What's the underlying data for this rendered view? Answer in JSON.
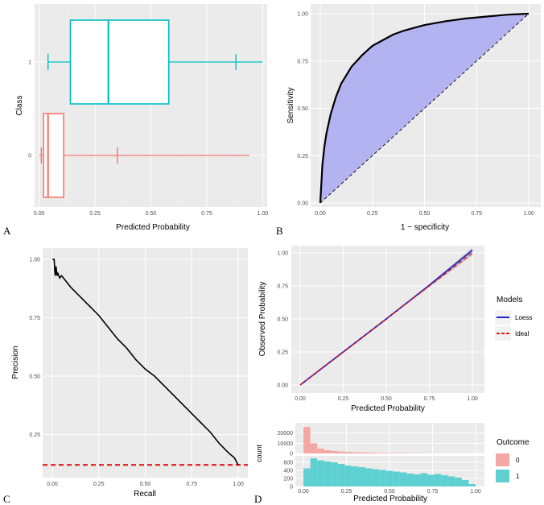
{
  "figure": {
    "panel_letters": [
      "A",
      "B",
      "C",
      "D"
    ],
    "colors": {
      "class0": "#f8766d",
      "class1": "#00bfc4",
      "roc_fill": "#b3b3f2",
      "loess": "#2222cc",
      "ideal": "#e31a1c",
      "panel_bg": "#ebebeb"
    }
  },
  "chart_data": [
    {
      "id": "A",
      "type": "box",
      "title": "",
      "xlabel": "Predicted Probability",
      "ylabel": "Class",
      "xlim": [
        -0.02,
        1.02
      ],
      "xticks": [
        "0.00",
        "0.25",
        "0.50",
        "0.75",
        "1.00"
      ],
      "categories": [
        "0",
        "1"
      ],
      "boxes": [
        {
          "class": "0",
          "whisker_low": 0.0,
          "q1": 0.02,
          "median": 0.04,
          "q3": 0.11,
          "whisker_high": 0.94,
          "marks": [
            0.01,
            0.35
          ]
        },
        {
          "class": "1",
          "whisker_low": 0.04,
          "q1": 0.14,
          "median": 0.31,
          "q3": 0.58,
          "whisker_high": 1.0,
          "marks": [
            0.04,
            0.88
          ]
        }
      ]
    },
    {
      "id": "B",
      "type": "line",
      "title": "",
      "xlabel": "1 − specificity",
      "ylabel": "Sensitivity",
      "xlim": [
        0,
        1
      ],
      "ylim": [
        0,
        1
      ],
      "xticks": [
        "0.00",
        "0.25",
        "0.50",
        "0.75",
        "1.00"
      ],
      "yticks": [
        "0.00",
        "0.25",
        "0.50",
        "0.75",
        "1.00"
      ],
      "x": [
        0,
        0.005,
        0.01,
        0.02,
        0.03,
        0.05,
        0.075,
        0.1,
        0.15,
        0.2,
        0.25,
        0.3,
        0.35,
        0.4,
        0.5,
        0.6,
        0.7,
        0.8,
        0.9,
        1.0
      ],
      "y": [
        0,
        0.1,
        0.2,
        0.3,
        0.37,
        0.47,
        0.56,
        0.63,
        0.72,
        0.78,
        0.83,
        0.86,
        0.89,
        0.91,
        0.94,
        0.96,
        0.975,
        0.985,
        0.995,
        1.0
      ],
      "reference_line": "diagonal"
    },
    {
      "id": "C",
      "type": "line",
      "title": "",
      "xlabel": "Recall",
      "ylabel": "Precision",
      "xlim": [
        0,
        1
      ],
      "ylim": [
        0.1,
        1.0
      ],
      "xticks": [
        "0.00",
        "0.25",
        "0.50",
        "0.75",
        "1.00"
      ],
      "yticks": [
        "0.25",
        "0.50",
        "0.75",
        "1.00"
      ],
      "x": [
        0,
        0.01,
        0.015,
        0.02,
        0.025,
        0.03,
        0.04,
        0.05,
        0.1,
        0.15,
        0.2,
        0.25,
        0.3,
        0.35,
        0.4,
        0.45,
        0.5,
        0.55,
        0.6,
        0.65,
        0.7,
        0.75,
        0.8,
        0.85,
        0.9,
        0.95,
        0.98,
        1.0
      ],
      "y": [
        1.0,
        1.0,
        0.93,
        0.97,
        0.93,
        0.94,
        0.92,
        0.93,
        0.88,
        0.84,
        0.8,
        0.76,
        0.71,
        0.66,
        0.62,
        0.57,
        0.53,
        0.5,
        0.46,
        0.42,
        0.38,
        0.34,
        0.3,
        0.26,
        0.21,
        0.17,
        0.15,
        0.12
      ],
      "baseline": 0.12
    },
    {
      "id": "D-top",
      "type": "line",
      "title": "",
      "xlabel": "Predicted Probability",
      "ylabel": "Observed Probability",
      "xlim": [
        0,
        1
      ],
      "ylim": [
        0,
        1
      ],
      "xticks": [
        "0.00",
        "0.25",
        "0.50",
        "0.75",
        "1.00"
      ],
      "yticks": [
        "0.00",
        "0.25",
        "0.50",
        "0.75",
        "1.00"
      ],
      "series": [
        {
          "name": "Loess",
          "x": [
            0,
            0.25,
            0.5,
            0.75,
            1.0
          ],
          "y": [
            0,
            0.25,
            0.5,
            0.755,
            1.02
          ]
        },
        {
          "name": "Ideal",
          "x": [
            0,
            1
          ],
          "y": [
            0,
            1
          ]
        }
      ],
      "legend": {
        "title": "Models",
        "entries": [
          "Loess",
          "Ideal"
        ],
        "position": "right"
      }
    },
    {
      "id": "D-bottom",
      "type": "bar",
      "title": "",
      "xlabel": "Predicted Probability",
      "ylabel": "count",
      "xlim": [
        0,
        1
      ],
      "xticks": [
        "0.00",
        "0.25",
        "0.50",
        "0.75",
        "1.00"
      ],
      "legend": {
        "title": "Outcome",
        "entries": [
          "0",
          "1"
        ],
        "position": "right"
      },
      "series": [
        {
          "name": "0",
          "ylim": [
            0,
            30000
          ],
          "yticks": [
            "0",
            "10000",
            "20000"
          ],
          "bin_width": 0.04,
          "x": [
            0.02,
            0.06,
            0.1,
            0.14,
            0.18,
            0.22,
            0.26,
            0.3,
            0.34,
            0.38,
            0.42,
            0.46,
            0.5,
            0.54,
            0.58,
            0.62,
            0.66,
            0.7,
            0.74,
            0.78,
            0.82,
            0.86,
            0.9,
            0.94,
            0.98
          ],
          "values": [
            26000,
            10000,
            4800,
            3200,
            2400,
            1900,
            1500,
            1200,
            1000,
            850,
            700,
            600,
            500,
            420,
            360,
            300,
            250,
            200,
            160,
            130,
            100,
            80,
            60,
            40,
            20
          ]
        },
        {
          "name": "1",
          "ylim": [
            0,
            760
          ],
          "yticks": [
            "0",
            "200",
            "400",
            "600"
          ],
          "bin_width": 0.04,
          "x": [
            0.02,
            0.06,
            0.1,
            0.14,
            0.18,
            0.22,
            0.26,
            0.3,
            0.34,
            0.38,
            0.42,
            0.46,
            0.5,
            0.54,
            0.58,
            0.62,
            0.66,
            0.7,
            0.74,
            0.78,
            0.82,
            0.86,
            0.9,
            0.94,
            0.98
          ],
          "values": [
            450,
            700,
            650,
            620,
            600,
            560,
            520,
            500,
            480,
            450,
            430,
            410,
            390,
            370,
            350,
            320,
            300,
            330,
            290,
            310,
            280,
            250,
            220,
            160,
            60
          ]
        }
      ]
    }
  ]
}
